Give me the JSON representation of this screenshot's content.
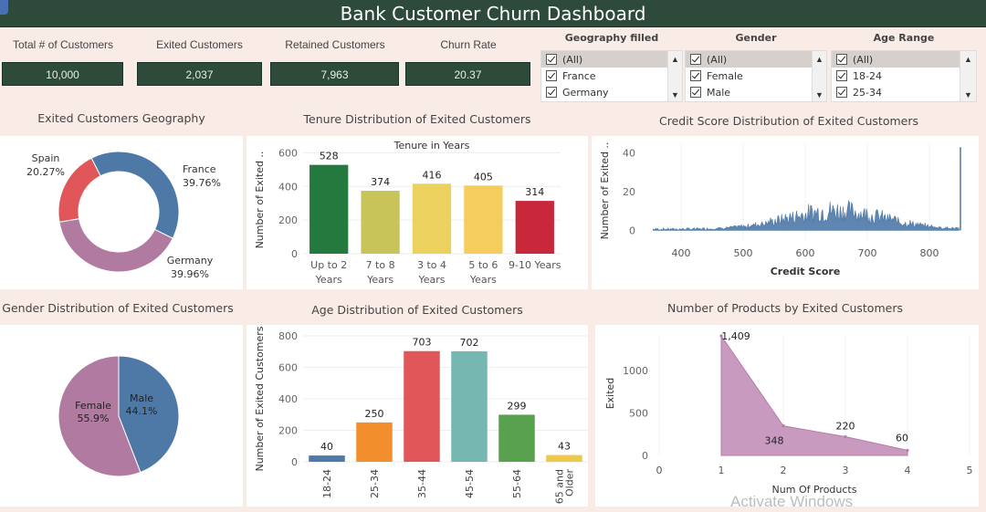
{
  "dashboard": {
    "title": "Bank Customer Churn Dashboard"
  },
  "kpis": [
    {
      "label": "Total # of Customers",
      "value": "10,000"
    },
    {
      "label": "Exited Customers",
      "value": "2,037"
    },
    {
      "label": "Retained Customers",
      "value": "7,963"
    },
    {
      "label": "Churn Rate",
      "value": "20.37"
    }
  ],
  "filters": [
    {
      "title": "Geography filled",
      "items": [
        "(All)",
        "France",
        "Germany"
      ]
    },
    {
      "title": "Gender",
      "items": [
        "(All)",
        "Female",
        "Male"
      ]
    },
    {
      "title": "Age Range",
      "items": [
        "(All)",
        "18-24",
        "25-34"
      ]
    }
  ],
  "scroll_glyphs": {
    "up": "▲",
    "down": "▼"
  },
  "watermark": "Activate Windows",
  "colors": {
    "banner": "#2d4a3a",
    "background": "#f9ece6"
  },
  "chart_data": [
    {
      "type": "pie",
      "title": "Exited Customers Geography",
      "donut": true,
      "slices": [
        {
          "label": "France",
          "pct_label": "39.76%",
          "value": 39.76,
          "color": "#4e79a7"
        },
        {
          "label": "Germany",
          "pct_label": "39.96%",
          "value": 39.96,
          "color": "#b07aa1"
        },
        {
          "label": "Spain",
          "pct_label": "20.27%",
          "value": 20.27,
          "color": "#e15759"
        }
      ]
    },
    {
      "type": "bar",
      "title": "Tenure Distribution of Exited Customers",
      "subtitle": "Tenure in Years",
      "ylabel": "Number of Exited ..",
      "ylim": [
        0,
        640
      ],
      "yticks": [
        0,
        200,
        400,
        600
      ],
      "categories": [
        [
          "Up to 2",
          "Years"
        ],
        [
          "7 to 8",
          "Years"
        ],
        [
          "3 to 4",
          "Years"
        ],
        [
          "5 to 6",
          "Years"
        ],
        [
          "9-10 Years"
        ]
      ],
      "values": [
        528,
        374,
        416,
        405,
        314
      ],
      "colors": [
        "#247a3e",
        "#c9c45a",
        "#ebd15e",
        "#f4cd5c",
        "#c8283a"
      ]
    },
    {
      "type": "bar",
      "title": "Credit Score Distribution of Exited Customers",
      "xlabel": "Credit Score",
      "ylabel": "Number of Exited ..",
      "xlim": [
        350,
        850
      ],
      "ylim": [
        -5,
        45
      ],
      "xticks": [
        400,
        500,
        600,
        700,
        800
      ],
      "yticks": [
        0,
        20,
        40
      ],
      "color": "#4e79a7",
      "spike": {
        "x": 850,
        "y": 43
      }
    },
    {
      "type": "pie",
      "title": "Gender Distribution of Exited Customers",
      "slices": [
        {
          "label": "Male",
          "pct_label": "44.1%",
          "value": 44.1,
          "color": "#4e79a7"
        },
        {
          "label": "Female",
          "pct_label": "55.9%",
          "value": 55.9,
          "color": "#b07aa1"
        }
      ]
    },
    {
      "type": "bar",
      "title": "Age Distribution of Exited Customers",
      "ylabel": "Number of Exited Customers",
      "ylim": [
        0,
        800
      ],
      "yticks": [
        0,
        200,
        400,
        600,
        800
      ],
      "categories": [
        [
          "18-24"
        ],
        [
          "25-34"
        ],
        [
          "35-44"
        ],
        [
          "45-54"
        ],
        [
          "55-64"
        ],
        [
          "65 and",
          "Older"
        ]
      ],
      "values": [
        40,
        250,
        703,
        702,
        299,
        43
      ],
      "colors": [
        "#4e79a7",
        "#f28e2b",
        "#e15759",
        "#76b7b2",
        "#59a14f",
        "#edc948"
      ]
    },
    {
      "type": "area",
      "title": "Number of Products by Exited Customers",
      "xlabel": "Num Of Products",
      "ylabel": "Exited",
      "xlim": [
        0,
        5
      ],
      "ylim": [
        0,
        1409
      ],
      "xticks": [
        0,
        1,
        2,
        3,
        4,
        5
      ],
      "yticks": [
        0,
        500,
        1000
      ],
      "x": [
        1,
        2,
        3,
        4
      ],
      "values": [
        1409,
        348,
        220,
        60
      ],
      "value_labels": [
        "1,409",
        "348",
        "220",
        "60"
      ],
      "color": "#c99ac0"
    }
  ]
}
